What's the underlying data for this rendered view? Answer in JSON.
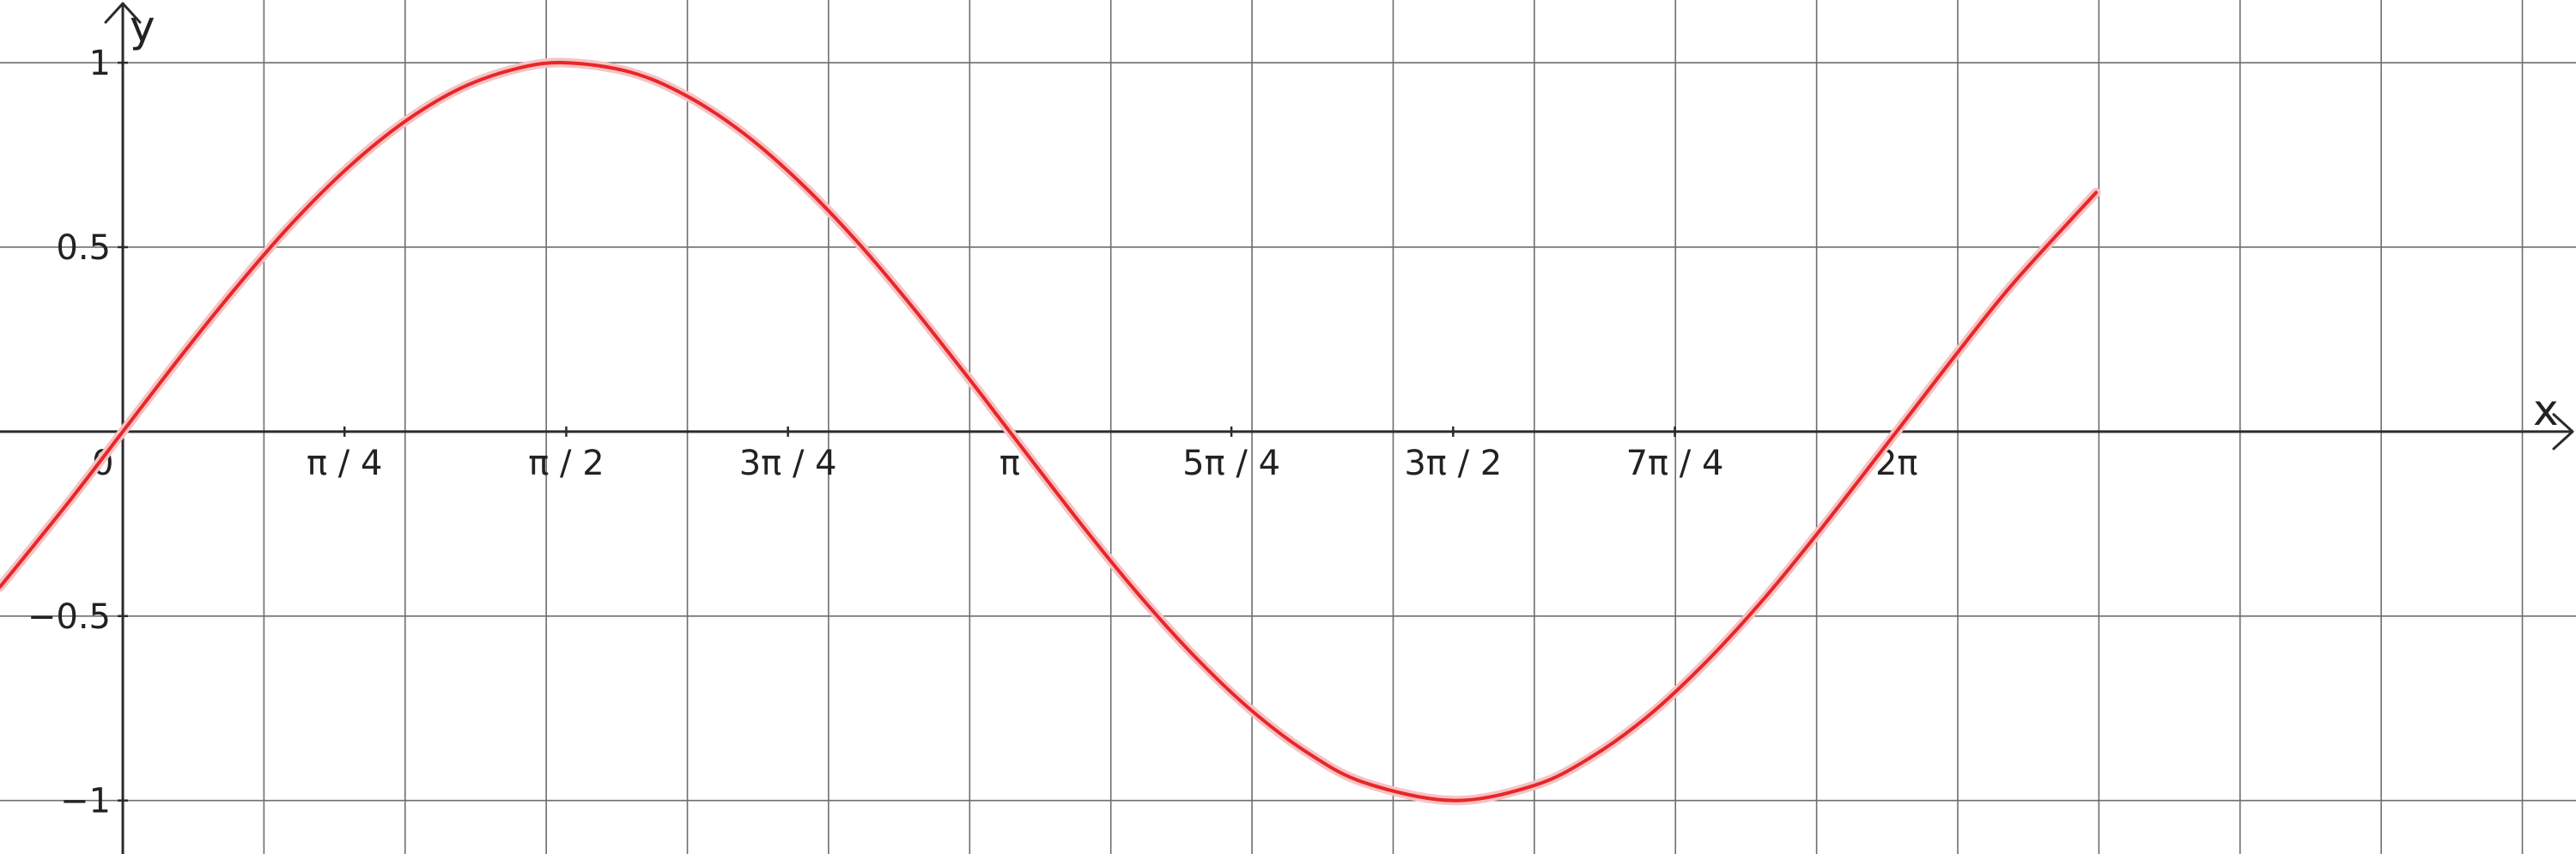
{
  "chart_data": {
    "type": "line",
    "title": "",
    "xlabel": "x",
    "ylabel": "y",
    "xlim": [
      -0.435,
      8.69
    ],
    "ylim": [
      -1.145,
      1.17
    ],
    "grid": true,
    "x_ticks": [
      {
        "value": 0.7854,
        "label": "π / 4"
      },
      {
        "value": 1.5708,
        "label": "π / 2"
      },
      {
        "value": 2.3562,
        "label": "3π / 4"
      },
      {
        "value": 3.1416,
        "label": "π"
      },
      {
        "value": 3.927,
        "label": "5π / 4"
      },
      {
        "value": 4.7124,
        "label": "3π / 2"
      },
      {
        "value": 5.4978,
        "label": "7π / 4"
      },
      {
        "value": 6.2832,
        "label": "2π"
      }
    ],
    "x_gridlines": [
      0.5,
      1,
      1.5,
      2,
      2.5,
      3,
      3.5,
      4,
      4.5,
      5,
      5.5,
      6,
      6.5,
      7,
      7.5,
      8,
      8.5
    ],
    "y_ticks": [
      {
        "value": 1,
        "label": "1"
      },
      {
        "value": 0.5,
        "label": "0.5"
      },
      {
        "value": -0.5,
        "label": "−0.5"
      },
      {
        "value": -1,
        "label": "−1"
      }
    ],
    "origin_label": "0",
    "series": [
      {
        "color": "#e8262b",
        "x": [
          -0.435,
          -0.2,
          0,
          0.2,
          0.4,
          0.6,
          0.8,
          1.0,
          1.2,
          1.4,
          1.5708,
          1.8,
          2.0,
          2.2,
          2.4,
          2.6,
          2.8,
          3.0,
          3.1416,
          3.4,
          3.6,
          3.8,
          4.0,
          4.2,
          4.4,
          4.7124,
          5.0,
          5.2,
          5.4,
          5.6,
          5.8,
          6.0,
          6.2832,
          6.5,
          6.7,
          6.99
        ],
        "y": [
          -0.421,
          -0.199,
          0,
          0.199,
          0.389,
          0.565,
          0.717,
          0.841,
          0.932,
          0.985,
          1,
          0.974,
          0.909,
          0.808,
          0.675,
          0.516,
          0.335,
          0.141,
          0,
          -0.256,
          -0.443,
          -0.612,
          -0.757,
          -0.872,
          -0.952,
          -1,
          -0.959,
          -0.883,
          -0.773,
          -0.631,
          -0.465,
          -0.279,
          0,
          0.215,
          0.405,
          0.648
        ]
      }
    ]
  }
}
